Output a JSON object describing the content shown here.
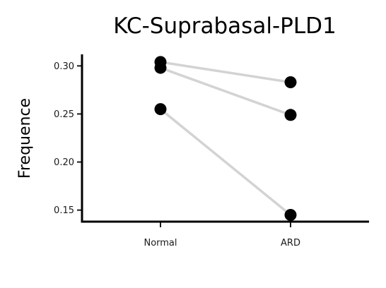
{
  "chart_data": {
    "type": "line",
    "title": "KC-Suprabasal-PLD1",
    "xlabel": "",
    "ylabel": "Frequence",
    "categories": [
      "Normal",
      "ARD"
    ],
    "y_ticks": [
      "0.15",
      "0.20",
      "0.25",
      "0.30"
    ],
    "y_tick_values": [
      0.15,
      0.2,
      0.25,
      0.3
    ],
    "ylim": [
      0.138,
      0.312
    ],
    "series": [
      {
        "values": [
          0.304,
          0.283
        ]
      },
      {
        "values": [
          0.298,
          0.249
        ]
      },
      {
        "values": [
          0.255,
          0.145
        ]
      }
    ],
    "line_color": "#d3d3d3",
    "point_color": "#000000",
    "grid": false,
    "legend": "none"
  }
}
